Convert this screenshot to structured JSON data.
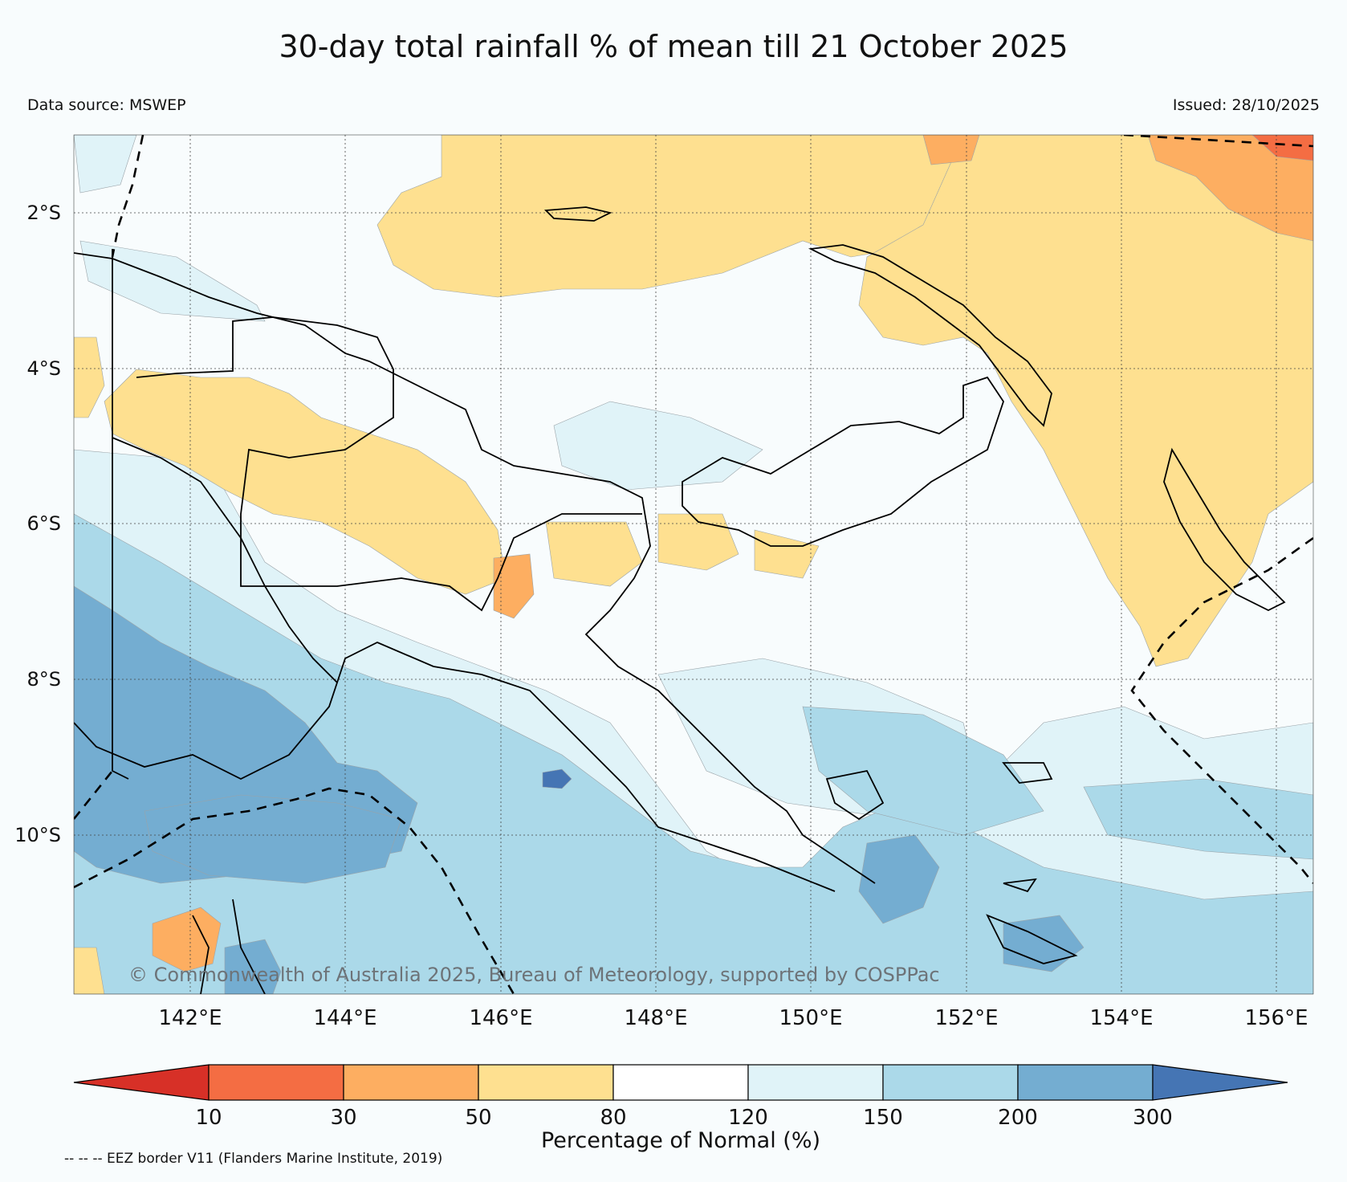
{
  "header": {
    "title": "30-day total rainfall % of mean till 21 October 2025",
    "data_source": "Data source: MSWEP",
    "issued": "Issued: 28/10/2025"
  },
  "map": {
    "lat_labels": [
      "2°S",
      "4°S",
      "6°S",
      "8°S",
      "10°S"
    ],
    "lon_labels": [
      "142°E",
      "144°E",
      "146°E",
      "148°E",
      "150°E",
      "152°E",
      "154°E",
      "156°E"
    ],
    "copyright": "© Commonwealth of Australia 2025, Bureau of Meteorology, supported by COSPPac",
    "colors": {
      "ocean_background": "#f8fcfd",
      "dry_light": "#fee090",
      "wet_light": "#e0f3f8",
      "wet_medium": "#abd9e9",
      "wet_strong": "#74add1",
      "wet_extreme": "#4575b4",
      "dry_medium": "#fdae61",
      "dry_strong": "#f46d43"
    }
  },
  "colorbar": {
    "ticks": [
      "10",
      "30",
      "50",
      "80",
      "120",
      "150",
      "200",
      "300"
    ],
    "title": "Percentage of Normal (%)",
    "colors": [
      "#d73027",
      "#f46d43",
      "#fdae61",
      "#fee090",
      "#ffffff",
      "#e0f3f8",
      "#abd9e9",
      "#74add1",
      "#4575b4"
    ]
  },
  "footnote": "-- -- -- EEZ border V11 (Flanders Marine Institute, 2019)"
}
